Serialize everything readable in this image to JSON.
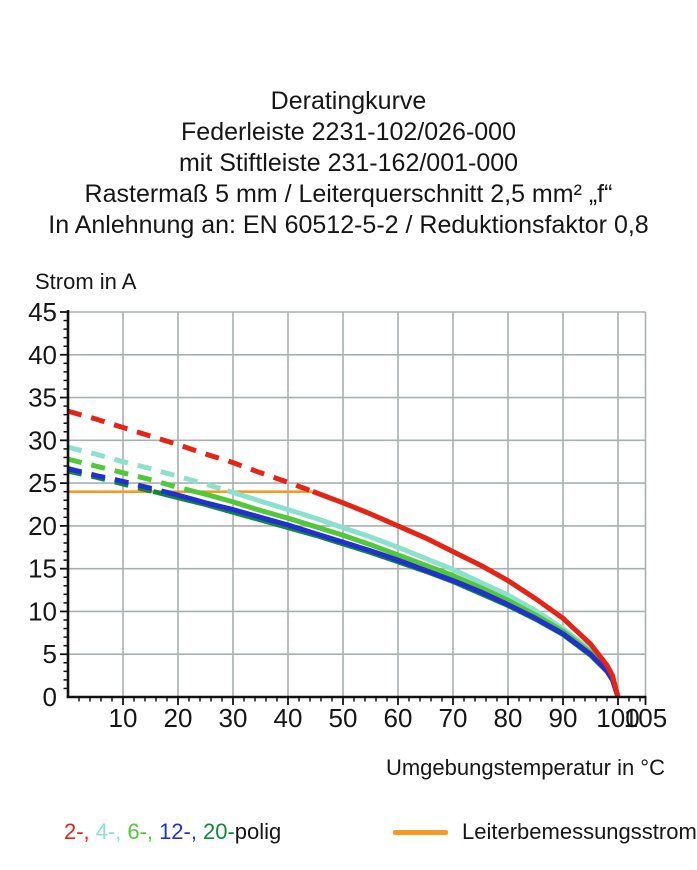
{
  "title": {
    "lines": [
      "Deratingkurve",
      "Federleiste 2231-102/026-000",
      "mit Stiftleiste 231-162/001-000",
      "Rastermaß 5 mm / Leiterquerschnitt 2,5 mm² „f“",
      "In Anlehnung an: EN 60512-5-2 / Reduktionsfaktor 0,8"
    ]
  },
  "chart_data": {
    "type": "line",
    "title": "Deratingkurve",
    "ylabel": "Strom in A",
    "xlabel": "Umgebungstemperatur in °C",
    "xlim": [
      0,
      105
    ],
    "ylim": [
      0,
      45
    ],
    "grid": true,
    "grid_color": "#a8b0b0",
    "y_major_ticks": [
      0,
      5,
      10,
      15,
      20,
      25,
      30,
      35,
      40,
      45
    ],
    "x_major_ticks": [
      10,
      20,
      30,
      40,
      50,
      60,
      70,
      80,
      90,
      100,
      105
    ],
    "y_minor_step": 1,
    "x_minor_step": 2,
    "x": [
      0,
      5,
      10,
      15,
      20,
      25,
      30,
      35,
      40,
      45,
      50,
      55,
      60,
      65,
      70,
      75,
      80,
      85,
      90,
      95,
      98,
      99,
      100
    ],
    "series": [
      {
        "name": "2-polig",
        "color": "#e42415",
        "zorder": 5,
        "dash_until_x": 44.5,
        "values": [
          33.4,
          32.5,
          31.5,
          30.5,
          29.5,
          28.4,
          27.4,
          26.2,
          25.1,
          23.9,
          22.7,
          21.4,
          20.0,
          18.6,
          17.0,
          15.4,
          13.6,
          11.5,
          9.2,
          6.2,
          3.7,
          2.5,
          0
        ]
      },
      {
        "name": "4-polig",
        "color": "#8ce0cd",
        "zorder": 2,
        "dash_until_x": 29,
        "values": [
          29.2,
          28.4,
          27.5,
          26.7,
          25.8,
          24.9,
          23.9,
          22.9,
          21.9,
          20.9,
          19.8,
          18.7,
          17.5,
          16.2,
          14.9,
          13.4,
          11.9,
          10.1,
          8.0,
          5.5,
          3.3,
          2.2,
          0
        ]
      },
      {
        "name": "6-polig",
        "color": "#52c838",
        "zorder": 3,
        "dash_until_x": 23,
        "values": [
          27.8,
          27.0,
          26.2,
          25.4,
          24.5,
          23.7,
          22.8,
          21.8,
          20.9,
          19.9,
          18.9,
          17.8,
          16.6,
          15.4,
          14.2,
          12.8,
          11.3,
          9.6,
          7.7,
          5.2,
          3.1,
          2.1,
          0
        ]
      },
      {
        "name": "12-polig",
        "color": "#2230cf",
        "zorder": 4,
        "dash_until_x": 17.5,
        "values": [
          26.7,
          25.9,
          25.2,
          24.4,
          23.6,
          22.7,
          21.9,
          21.0,
          20.1,
          19.1,
          18.1,
          17.1,
          16.0,
          14.8,
          13.6,
          12.3,
          10.8,
          9.2,
          7.4,
          5.0,
          3.0,
          2.0,
          0
        ]
      },
      {
        "name": "20-polig",
        "color": "#0c8a3a",
        "zorder": 1,
        "dash_until_x": 15.5,
        "values": [
          26.4,
          25.7,
          24.9,
          24.1,
          23.3,
          22.5,
          21.6,
          20.7,
          19.8,
          18.9,
          17.9,
          16.9,
          15.8,
          14.7,
          13.5,
          12.1,
          10.7,
          9.1,
          7.3,
          4.9,
          3.0,
          2.0,
          0
        ]
      }
    ],
    "reference_line": {
      "label": "Leiterbemessungsstrom",
      "color": "#f59b21",
      "y": 24,
      "x_start": 0,
      "x_end": 44.5
    },
    "legend_position": "bottom"
  },
  "legend": {
    "poles": [
      {
        "label": "2-,",
        "color": "#e42415"
      },
      {
        "label": "4-,",
        "color": "#8ce0cd"
      },
      {
        "label": "6-,",
        "color": "#52c838"
      },
      {
        "label": "12-,",
        "color": "#2230cf"
      },
      {
        "label": "20-",
        "color": "#0c8a3a"
      }
    ],
    "poles_suffix": "polig",
    "rated_color": "#f59b21",
    "rated_label": "Leiterbemessungsstrom"
  }
}
